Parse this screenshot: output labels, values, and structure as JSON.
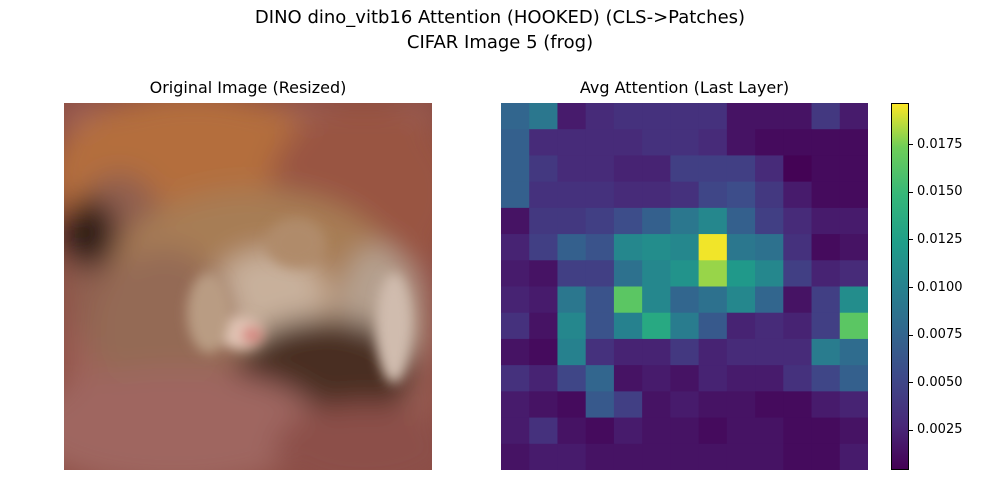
{
  "figure": {
    "title_line1": "DINO dino_vitb16 Attention (HOOKED) (CLS->Patches)",
    "title_line2": "CIFAR Image 5 (frog)"
  },
  "left_panel": {
    "title": "Original Image (Resized)"
  },
  "right_panel": {
    "title": "Avg Attention (Last Layer)"
  },
  "colors": {
    "background": "#ffffff",
    "text": "#000000",
    "viridis_low": "#440154",
    "viridis_mid": "#21918c",
    "viridis_high": "#fde725"
  },
  "chart_data": {
    "type": "heatmap",
    "title": "Avg Attention (Last Layer)",
    "xlabel": "",
    "ylabel": "",
    "colormap": "viridis",
    "grid": false,
    "legend": "colorbar-right",
    "vmin": 0.0004,
    "vmax": 0.0197,
    "colorbar_ticks": [
      0.0025,
      0.005,
      0.0075,
      0.01,
      0.0125,
      0.015,
      0.0175
    ],
    "colorbar_tick_labels": [
      "0.0025",
      "0.0050",
      "0.0075",
      "0.0100",
      "0.0125",
      "0.0150",
      "0.0175"
    ],
    "values": [
      [
        0.0075,
        0.009,
        0.002,
        0.003,
        0.0035,
        0.0035,
        0.0035,
        0.0035,
        0.0015,
        0.0015,
        0.0015,
        0.004,
        0.002
      ],
      [
        0.007,
        0.003,
        0.003,
        0.003,
        0.003,
        0.0035,
        0.0035,
        0.003,
        0.0015,
        0.001,
        0.001,
        0.001,
        0.001
      ],
      [
        0.007,
        0.004,
        0.003,
        0.003,
        0.0025,
        0.0025,
        0.0045,
        0.0045,
        0.0045,
        0.003,
        0.0005,
        0.001,
        0.001
      ],
      [
        0.007,
        0.0035,
        0.0035,
        0.0035,
        0.003,
        0.003,
        0.0035,
        0.005,
        0.0055,
        0.004,
        0.002,
        0.001,
        0.001
      ],
      [
        0.0015,
        0.004,
        0.004,
        0.0045,
        0.0055,
        0.007,
        0.009,
        0.0105,
        0.007,
        0.0045,
        0.003,
        0.002,
        0.002
      ],
      [
        0.0025,
        0.0045,
        0.007,
        0.006,
        0.0105,
        0.011,
        0.0105,
        0.0195,
        0.009,
        0.0085,
        0.0035,
        0.001,
        0.0015
      ],
      [
        0.002,
        0.0015,
        0.0045,
        0.0045,
        0.0085,
        0.0105,
        0.0115,
        0.018,
        0.012,
        0.0105,
        0.0045,
        0.0025,
        0.003
      ],
      [
        0.0025,
        0.002,
        0.009,
        0.006,
        0.0165,
        0.0105,
        0.0075,
        0.0085,
        0.0105,
        0.0075,
        0.0015,
        0.0045,
        0.011
      ],
      [
        0.0035,
        0.0015,
        0.0105,
        0.006,
        0.01,
        0.0135,
        0.0095,
        0.0065,
        0.0025,
        0.003,
        0.0025,
        0.0045,
        0.0165
      ],
      [
        0.0015,
        0.001,
        0.01,
        0.0035,
        0.0025,
        0.0025,
        0.004,
        0.0025,
        0.003,
        0.003,
        0.003,
        0.0095,
        0.008
      ],
      [
        0.0035,
        0.0025,
        0.005,
        0.0075,
        0.0015,
        0.002,
        0.0015,
        0.0025,
        0.002,
        0.002,
        0.0035,
        0.005,
        0.007
      ],
      [
        0.002,
        0.0015,
        0.001,
        0.0065,
        0.0045,
        0.0015,
        0.002,
        0.0015,
        0.0015,
        0.001,
        0.001,
        0.002,
        0.0025
      ],
      [
        0.002,
        0.0035,
        0.0015,
        0.001,
        0.002,
        0.0015,
        0.0015,
        0.001,
        0.0015,
        0.0015,
        0.001,
        0.001,
        0.0015
      ],
      [
        0.0015,
        0.002,
        0.002,
        0.0015,
        0.0015,
        0.0015,
        0.0015,
        0.0015,
        0.0015,
        0.0015,
        0.001,
        0.001,
        0.002
      ]
    ]
  }
}
